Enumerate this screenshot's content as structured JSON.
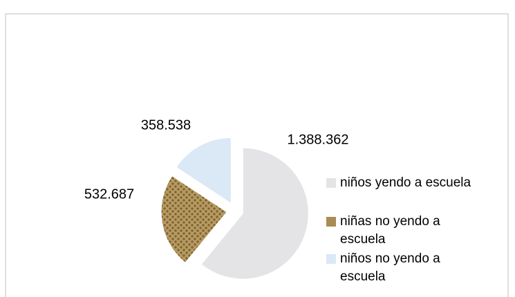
{
  "chart_data": {
    "type": "pie",
    "categories": [
      "niños yendo a escuela",
      "niñas no yendo a escuela",
      "niños no yendo a escuela"
    ],
    "values": [
      1388362,
      532687,
      358538
    ],
    "value_labels": [
      "1.388.362",
      "532.687",
      "358.538"
    ],
    "colors": [
      "#e4e4e6",
      "#b89b62",
      "#dbe8f6"
    ],
    "legend": "right"
  }
}
